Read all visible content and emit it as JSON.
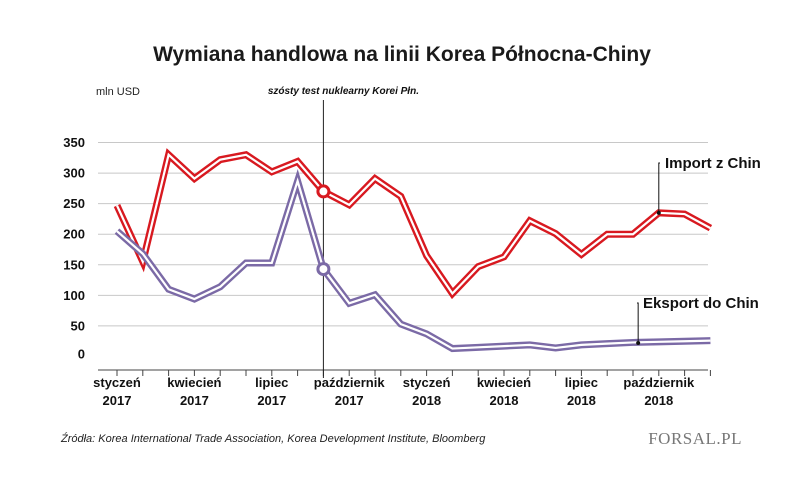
{
  "chart_data": {
    "type": "line",
    "title": "Wymiana handlowa na linii Korea Północna-Chiny",
    "ylabel": "mln USD",
    "xlabel": "",
    "ylim": [
      0,
      350
    ],
    "yticks": [
      0,
      50,
      100,
      150,
      200,
      250,
      300,
      350
    ],
    "grid": true,
    "x_tick_labels": [
      {
        "month_index": 0,
        "line1": "styczeń",
        "line2": "2017"
      },
      {
        "month_index": 3,
        "line1": "kwiecień",
        "line2": "2017"
      },
      {
        "month_index": 6,
        "line1": "lipiec",
        "line2": "2017"
      },
      {
        "month_index": 9,
        "line1": "październik",
        "line2": "2017"
      },
      {
        "month_index": 12,
        "line1": "styczeń",
        "line2": "2018"
      },
      {
        "month_index": 15,
        "line1": "kwiecień",
        "line2": "2018"
      },
      {
        "month_index": 18,
        "line1": "lipiec",
        "line2": "2018"
      },
      {
        "month_index": 21,
        "line1": "październik",
        "line2": "2018"
      }
    ],
    "x": [
      0,
      1,
      2,
      3,
      4,
      5,
      6,
      7,
      8,
      9,
      10,
      11,
      12,
      13,
      14,
      15,
      16,
      17,
      18,
      19,
      20,
      21,
      22,
      23
    ],
    "series": [
      {
        "name": "Import z Chin",
        "color": "#d81920",
        "values": [
          247,
          155,
          330,
          291,
          322,
          330,
          302,
          319,
          270,
          248,
          291,
          262,
          165,
          103,
          147,
          163,
          222,
          201,
          167,
          200,
          200,
          235,
          233,
          210
        ]
      },
      {
        "name": "Eksport do Chin",
        "color": "#7b6aa6",
        "values": [
          205,
          168,
          110,
          94,
          114,
          153,
          153,
          287,
          143,
          87,
          101,
          53,
          37,
          13,
          15,
          17,
          19,
          14,
          19,
          21,
          23,
          24,
          25,
          26
        ]
      }
    ],
    "annotation": {
      "text": "szósty test nuklearny Korei Płn.",
      "month_index": 8,
      "marked_values": [
        270,
        143
      ]
    }
  },
  "source_text": "Źródła: Korea International Trade Association, Korea Development Institute, Bloomberg",
  "logo_text": "FORSAL.PL",
  "colors": {
    "import": "#d81920",
    "export": "#7b6aa6",
    "grid": "#c8c8c8",
    "axis": "#444444"
  }
}
